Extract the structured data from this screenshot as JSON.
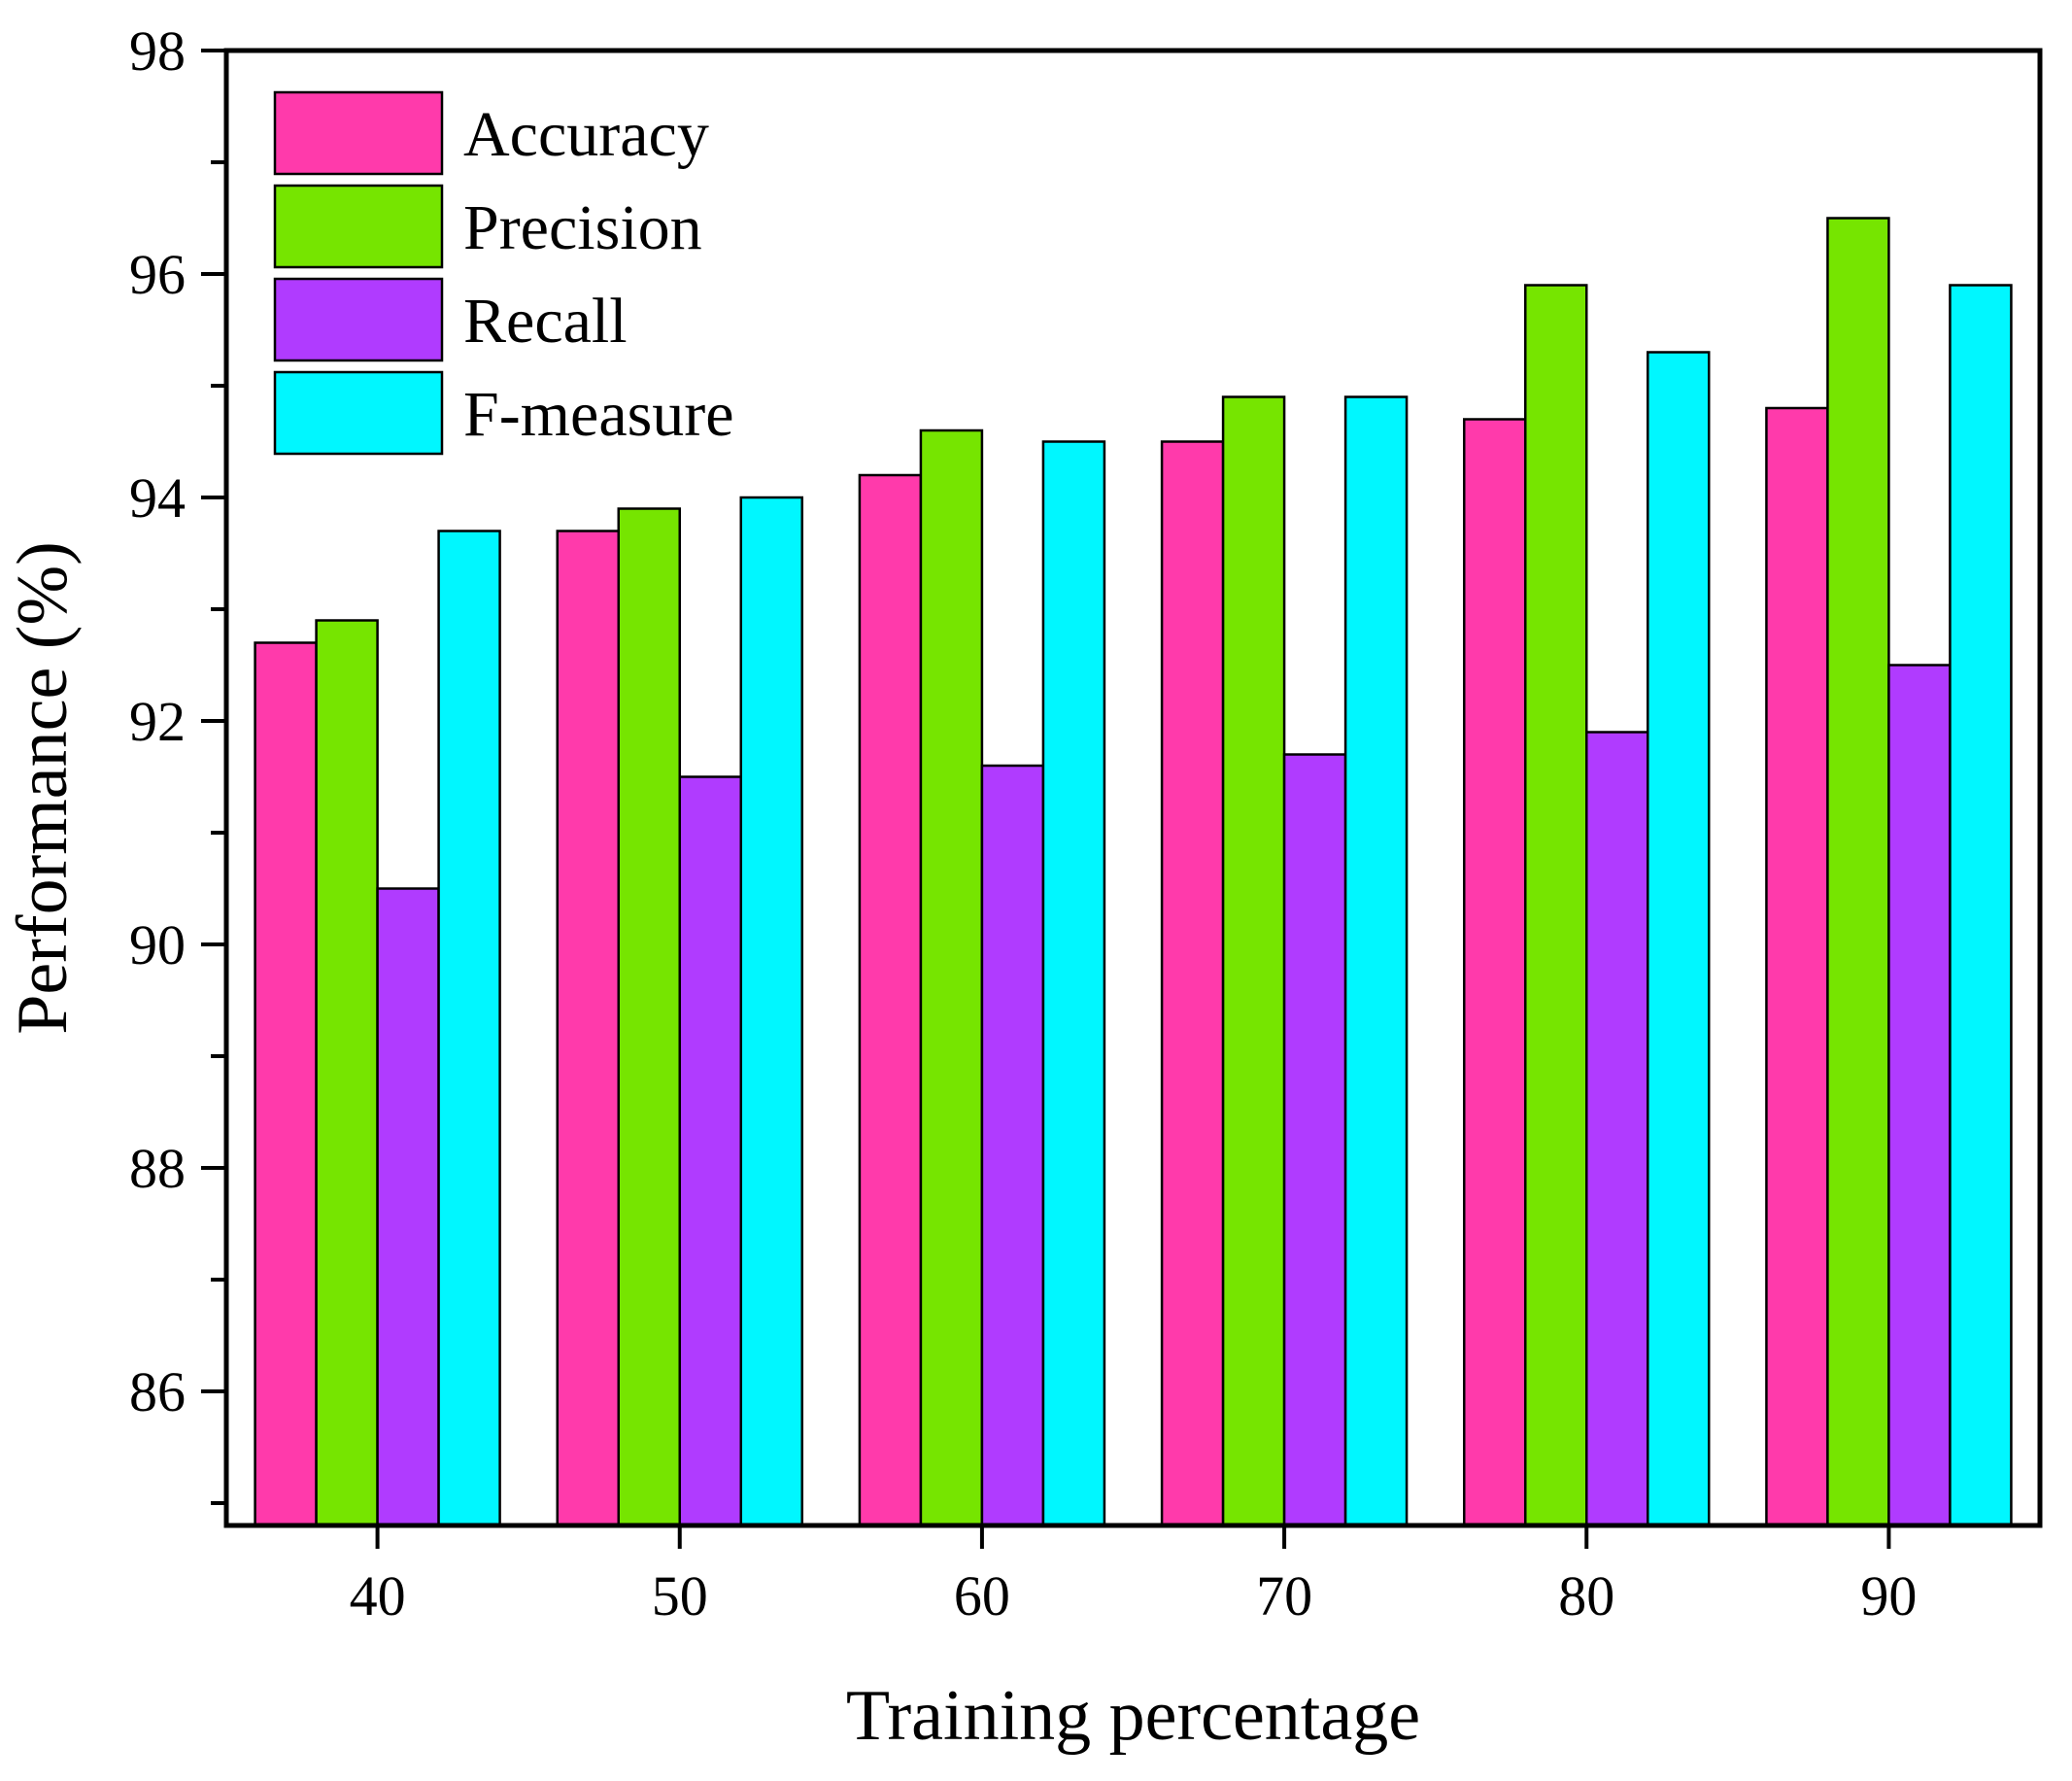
{
  "chart_data": {
    "type": "bar",
    "title": "",
    "xlabel": "Training percentage",
    "ylabel": "Performance (%)",
    "categories": [
      "40",
      "50",
      "60",
      "70",
      "80",
      "90"
    ],
    "ylim": [
      84.8,
      98
    ],
    "yticks": [
      "86",
      "88",
      "90",
      "92",
      "94",
      "96",
      "98"
    ],
    "ytick_values": [
      86,
      88,
      90,
      92,
      94,
      96,
      98
    ],
    "minor_tick_step": 1,
    "grid": false,
    "legend_position": "top-left",
    "series": [
      {
        "name": "Accuracy",
        "color": "#ff3aab",
        "values": [
          92.7,
          93.7,
          94.2,
          94.5,
          94.7,
          94.8
        ]
      },
      {
        "name": "Precision",
        "color": "#76e500",
        "values": [
          92.9,
          93.9,
          94.6,
          94.9,
          95.9,
          96.5
        ]
      },
      {
        "name": "Recall",
        "color": "#b03bff",
        "values": [
          90.5,
          91.5,
          91.6,
          91.7,
          91.9,
          92.5
        ]
      },
      {
        "name": "F-measure",
        "color": "#00f7ff",
        "values": [
          93.7,
          94.0,
          94.5,
          94.9,
          95.3,
          95.9
        ]
      }
    ]
  }
}
